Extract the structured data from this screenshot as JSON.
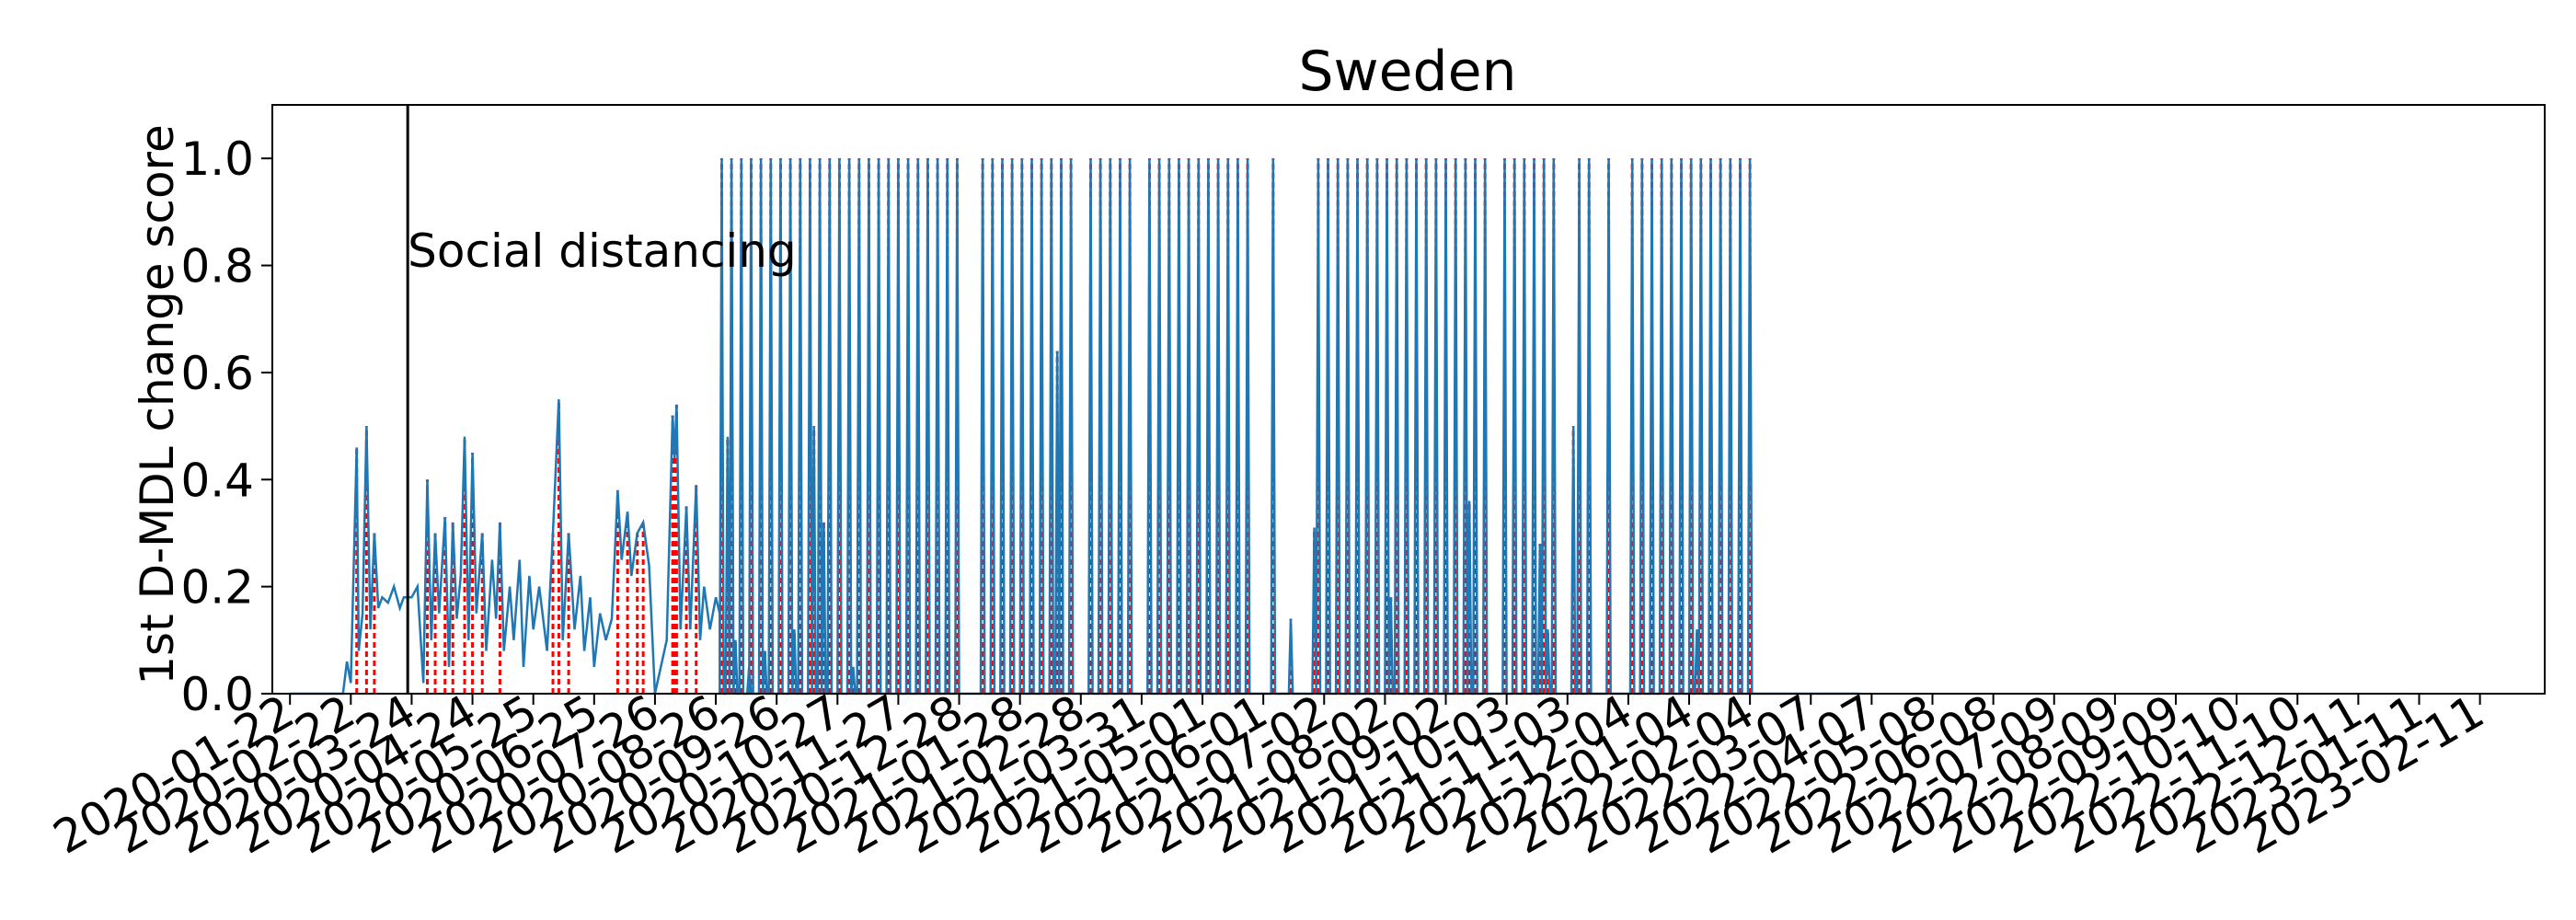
{
  "chart_data": {
    "type": "line",
    "title": "Sweden",
    "xlabel": "",
    "ylabel": "1st D-MDL change score",
    "ylim": [
      0,
      1.1
    ],
    "xlim": [
      "2020-01-13",
      "2023-03-16"
    ],
    "grid": false,
    "x_tick_labels": [
      "2020-01-22",
      "2020-02-22",
      "2020-03-24",
      "2020-04-24",
      "2020-05-25",
      "2020-06-25",
      "2020-07-26",
      "2020-08-26",
      "2020-09-26",
      "2020-10-27",
      "2020-11-27",
      "2020-12-28",
      "2021-01-28",
      "2021-02-28",
      "2021-03-31",
      "2021-05-01",
      "2021-06-01",
      "2021-07-02",
      "2021-08-02",
      "2021-09-02",
      "2021-10-03",
      "2021-11-03",
      "2021-12-04",
      "2022-01-04",
      "2022-02-04",
      "2022-03-07",
      "2022-04-07",
      "2022-05-08",
      "2022-06-08",
      "2022-07-09",
      "2022-08-09",
      "2022-09-09",
      "2022-10-10",
      "2022-11-10",
      "2022-12-11",
      "2023-01-11",
      "2023-02-11"
    ],
    "y_tick_labels": [
      "0.0",
      "0.2",
      "0.4",
      "0.6",
      "0.8",
      "1.0"
    ],
    "y_ticks": [
      0,
      0.2,
      0.4,
      0.6,
      0.8,
      1.0
    ],
    "event_line": {
      "date": "2020-03-22",
      "label": "Social distancing"
    },
    "series_color": "#1f77b4",
    "alarm_color": "#ff0000",
    "event_color": "#000000",
    "data_end": "2022-04-01",
    "early_segment": [
      [
        "2020-02-18",
        0.0
      ],
      [
        "2020-02-20",
        0.06
      ],
      [
        "2020-02-22",
        0.02
      ],
      [
        "2020-02-25",
        0.46
      ],
      [
        "2020-02-26",
        0.08
      ],
      [
        "2020-02-28",
        0.15
      ],
      [
        "2020-03-01",
        0.5
      ],
      [
        "2020-03-03",
        0.12
      ],
      [
        "2020-03-05",
        0.3
      ],
      [
        "2020-03-07",
        0.16
      ],
      [
        "2020-03-09",
        0.18
      ],
      [
        "2020-03-12",
        0.17
      ],
      [
        "2020-03-15",
        0.2
      ],
      [
        "2020-03-18",
        0.16
      ],
      [
        "2020-03-20",
        0.18
      ],
      [
        "2020-03-24",
        0.18
      ],
      [
        "2020-03-27",
        0.2
      ],
      [
        "2020-03-30",
        0.02
      ],
      [
        "2020-04-01",
        0.4
      ],
      [
        "2020-04-03",
        0.1
      ],
      [
        "2020-04-05",
        0.3
      ],
      [
        "2020-04-07",
        0.15
      ],
      [
        "2020-04-10",
        0.33
      ],
      [
        "2020-04-12",
        0.05
      ],
      [
        "2020-04-14",
        0.32
      ],
      [
        "2020-04-16",
        0.14
      ],
      [
        "2020-04-18",
        0.22
      ],
      [
        "2020-04-20",
        0.48
      ],
      [
        "2020-04-22",
        0.1
      ],
      [
        "2020-04-24",
        0.45
      ],
      [
        "2020-04-26",
        0.15
      ],
      [
        "2020-04-29",
        0.3
      ],
      [
        "2020-05-01",
        0.08
      ],
      [
        "2020-05-04",
        0.25
      ],
      [
        "2020-05-06",
        0.14
      ],
      [
        "2020-05-08",
        0.32
      ],
      [
        "2020-05-10",
        0.08
      ],
      [
        "2020-05-13",
        0.2
      ],
      [
        "2020-05-15",
        0.1
      ],
      [
        "2020-05-18",
        0.25
      ],
      [
        "2020-05-20",
        0.05
      ],
      [
        "2020-05-23",
        0.22
      ],
      [
        "2020-05-25",
        0.12
      ],
      [
        "2020-05-28",
        0.2
      ],
      [
        "2020-06-01",
        0.08
      ],
      [
        "2020-06-04",
        0.3
      ],
      [
        "2020-06-07",
        0.55
      ],
      [
        "2020-06-09",
        0.1
      ],
      [
        "2020-06-12",
        0.3
      ],
      [
        "2020-06-15",
        0.12
      ],
      [
        "2020-06-18",
        0.22
      ],
      [
        "2020-06-20",
        0.08
      ],
      [
        "2020-06-23",
        0.18
      ],
      [
        "2020-06-25",
        0.05
      ],
      [
        "2020-06-28",
        0.15
      ],
      [
        "2020-07-01",
        0.1
      ],
      [
        "2020-07-04",
        0.14
      ],
      [
        "2020-07-07",
        0.38
      ],
      [
        "2020-07-09",
        0.25
      ],
      [
        "2020-07-12",
        0.34
      ],
      [
        "2020-07-14",
        0.22
      ],
      [
        "2020-07-17",
        0.3
      ],
      [
        "2020-07-20",
        0.32
      ],
      [
        "2020-07-23",
        0.24
      ],
      [
        "2020-07-26",
        0.0
      ],
      [
        "2020-08-01",
        0.1
      ],
      [
        "2020-08-04",
        0.52
      ],
      [
        "2020-08-05",
        0.44
      ],
      [
        "2020-08-06",
        0.54
      ],
      [
        "2020-08-08",
        0.12
      ],
      [
        "2020-08-11",
        0.35
      ],
      [
        "2020-08-13",
        0.12
      ],
      [
        "2020-08-16",
        0.39
      ],
      [
        "2020-08-18",
        0.1
      ],
      [
        "2020-08-20",
        0.2
      ],
      [
        "2020-08-23",
        0.12
      ],
      [
        "2020-08-26",
        0.18
      ],
      [
        "2020-08-28",
        0.15
      ]
    ],
    "spikes_to_one": [
      "2020-08-29",
      "2020-09-03",
      "2020-09-08",
      "2020-09-13",
      "2020-09-18",
      "2020-09-23",
      "2020-09-28",
      "2020-10-03",
      "2020-10-08",
      "2020-10-13",
      "2020-10-18",
      "2020-10-23",
      "2020-10-28",
      "2020-11-02",
      "2020-11-07",
      "2020-11-12",
      "2020-11-17",
      "2020-11-22",
      "2020-11-27",
      "2020-12-02",
      "2020-12-07",
      "2020-12-12",
      "2020-12-17",
      "2020-12-22",
      "2020-12-27",
      "2021-01-09",
      "2021-01-14",
      "2021-01-19",
      "2021-01-24",
      "2021-01-29",
      "2021-02-03",
      "2021-02-08",
      "2021-02-13",
      "2021-02-18",
      "2021-02-23",
      "2021-03-05",
      "2021-03-10",
      "2021-03-15",
      "2021-03-20",
      "2021-03-25",
      "2021-04-04",
      "2021-04-09",
      "2021-04-14",
      "2021-04-19",
      "2021-04-24",
      "2021-04-29",
      "2021-05-04",
      "2021-05-09",
      "2021-05-14",
      "2021-05-19",
      "2021-05-24",
      "2021-06-06",
      "2021-06-29",
      "2021-07-04",
      "2021-07-09",
      "2021-07-14",
      "2021-07-19",
      "2021-07-24",
      "2021-07-29",
      "2021-08-03",
      "2021-08-08",
      "2021-08-13",
      "2021-08-18",
      "2021-08-23",
      "2021-08-28",
      "2021-09-02",
      "2021-09-07",
      "2021-09-12",
      "2021-09-17",
      "2021-09-22",
      "2021-10-02",
      "2021-10-07",
      "2021-10-12",
      "2021-10-17",
      "2021-10-22",
      "2021-10-27",
      "2021-11-09",
      "2021-11-14",
      "2021-11-24",
      "2021-12-06",
      "2021-12-11",
      "2021-12-16",
      "2021-12-21",
      "2021-12-26",
      "2021-12-31",
      "2022-01-05",
      "2022-01-10",
      "2022-01-15",
      "2022-01-20",
      "2022-01-25",
      "2022-01-30",
      "2022-02-04"
    ],
    "partial_spikes": [
      [
        "2020-09-01",
        0.48
      ],
      [
        "2020-09-05",
        0.1
      ],
      [
        "2020-09-12",
        0.05
      ],
      [
        "2020-09-20",
        0.08
      ],
      [
        "2020-10-05",
        0.12
      ],
      [
        "2020-10-15",
        0.5
      ],
      [
        "2020-10-20",
        0.32
      ],
      [
        "2020-11-04",
        0.05
      ],
      [
        "2021-02-16",
        0.64
      ],
      [
        "2021-06-15",
        0.14
      ],
      [
        "2021-06-27",
        0.31
      ],
      [
        "2021-08-05",
        0.18
      ],
      [
        "2021-09-14",
        0.36
      ],
      [
        "2021-10-20",
        0.28
      ],
      [
        "2021-10-24",
        0.12
      ],
      [
        "2021-11-06",
        0.5
      ],
      [
        "2022-01-08",
        0.12
      ]
    ]
  }
}
